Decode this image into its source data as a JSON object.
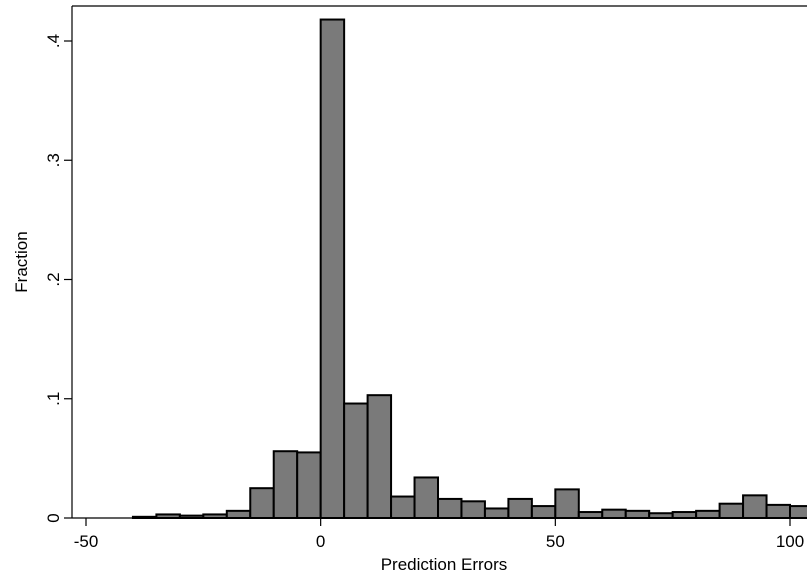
{
  "chart_data": {
    "type": "bar",
    "xlabel": "Prediction Errors",
    "ylabel": "Fraction",
    "xlim": [
      -50,
      100
    ],
    "ylim": [
      0,
      0.42
    ],
    "x_ticks": [
      -50,
      0,
      50,
      100
    ],
    "x_tick_labels": [
      "-50",
      "0",
      "50",
      "100"
    ],
    "y_ticks": [
      0,
      0.1,
      0.2,
      0.3,
      0.4
    ],
    "y_tick_labels": [
      "0",
      ".1",
      ".2",
      ".3",
      ".4"
    ],
    "bin_width": 5,
    "bin_starts": [
      -40,
      -35,
      -30,
      -25,
      -20,
      -15,
      -10,
      -5,
      0,
      5,
      10,
      15,
      20,
      25,
      30,
      35,
      40,
      45,
      50,
      55,
      60,
      65,
      70,
      75,
      80,
      85,
      90,
      95,
      100
    ],
    "values": [
      0.001,
      0.003,
      0.002,
      0.003,
      0.006,
      0.025,
      0.056,
      0.055,
      0.418,
      0.096,
      0.103,
      0.018,
      0.034,
      0.016,
      0.014,
      0.008,
      0.016,
      0.01,
      0.024,
      0.005,
      0.007,
      0.006,
      0.004,
      0.005,
      0.006,
      0.012,
      0.019,
      0.011,
      0.01
    ],
    "bar_color": "#7a7a7a",
    "grid": false,
    "legend": "none"
  }
}
